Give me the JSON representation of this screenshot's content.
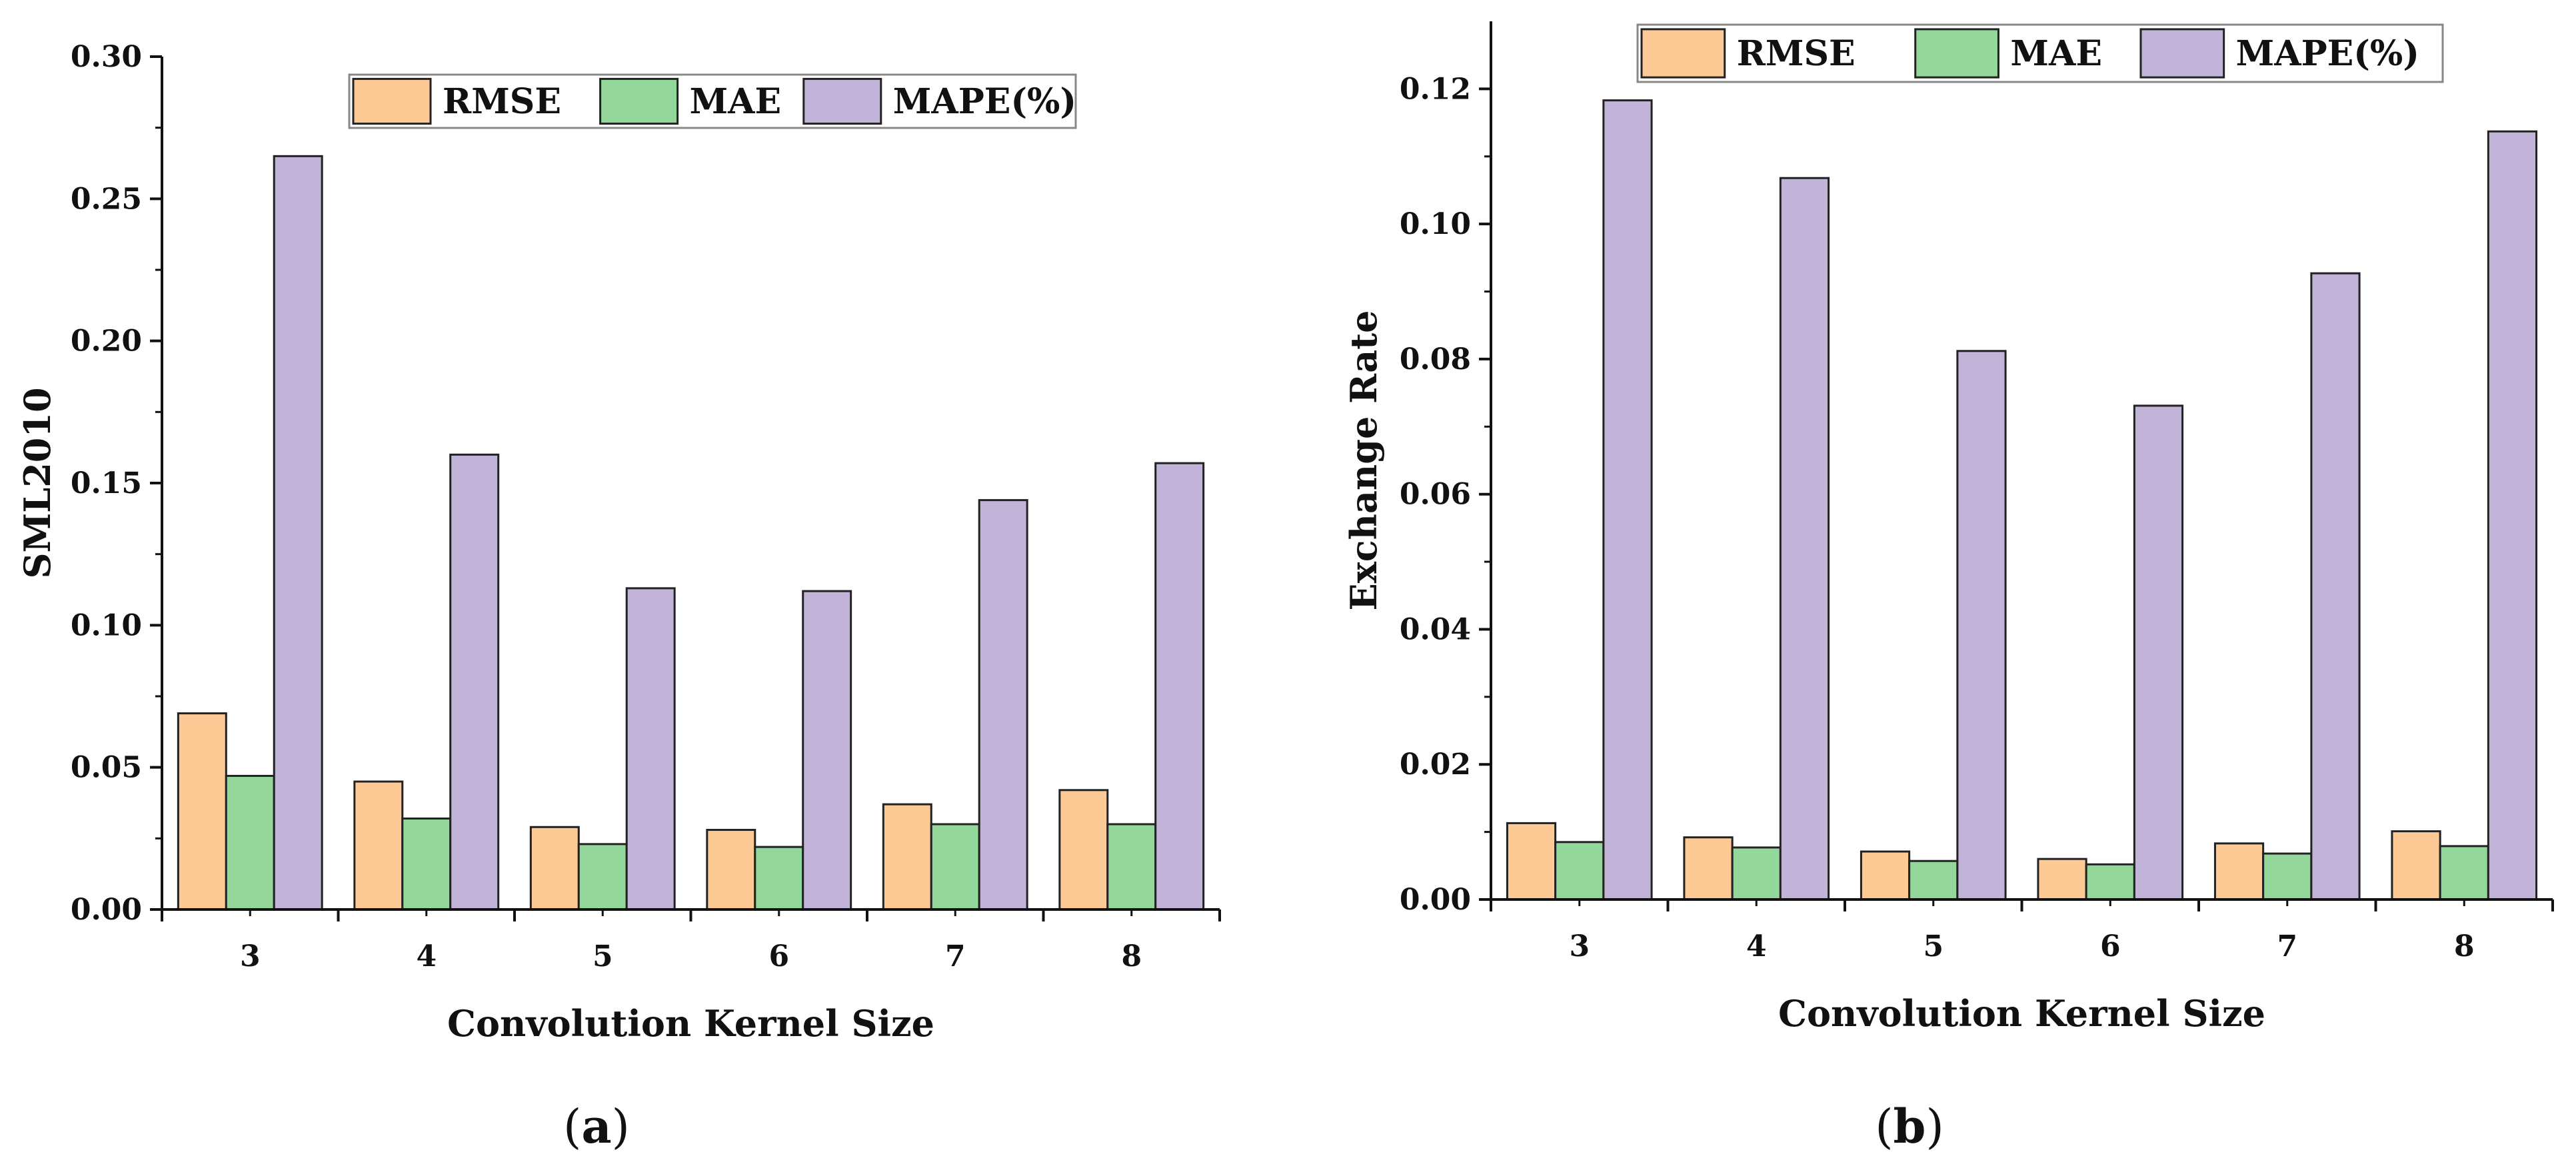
{
  "colors": {
    "RMSE": "#FDCA95",
    "MAE": "#93D79A",
    "MAPE(%)": "#C2B4D8"
  },
  "chart_data": [
    {
      "type": "bar",
      "categories": [
        "3",
        "4",
        "5",
        "6",
        "7",
        "8"
      ],
      "xlabel": "Convolution Kernel Size",
      "ylabel": "SML2010",
      "ylim": [
        0,
        0.3
      ],
      "yticks": [
        0.0,
        0.05,
        0.1,
        0.15,
        0.2,
        0.25,
        0.3
      ],
      "ytick_labels": [
        "0.00",
        "0.05",
        "0.10",
        "0.15",
        "0.20",
        "0.25",
        "0.30"
      ],
      "legend_position": "top-right",
      "series": [
        {
          "name": "RMSE",
          "values": [
            0.069,
            0.045,
            0.029,
            0.028,
            0.037,
            0.042
          ]
        },
        {
          "name": "MAE",
          "values": [
            0.047,
            0.032,
            0.023,
            0.022,
            0.03,
            0.03
          ]
        },
        {
          "name": "MAPE(%)",
          "values": [
            0.265,
            0.16,
            0.113,
            0.112,
            0.144,
            0.157
          ]
        }
      ],
      "caption_open": "(",
      "caption_letter": "a",
      "caption_close": ")"
    },
    {
      "type": "bar",
      "categories": [
        "3",
        "4",
        "5",
        "6",
        "7",
        "8"
      ],
      "xlabel": "Convolution Kernel Size",
      "ylabel": "Exchange Rate",
      "ylim": [
        0,
        0.13
      ],
      "yticks": [
        0.0,
        0.02,
        0.04,
        0.06,
        0.08,
        0.1,
        0.12
      ],
      "ytick_labels": [
        "0.00",
        "0.02",
        "0.04",
        "0.06",
        "0.08",
        "0.10",
        "0.12"
      ],
      "legend_position": "top-right",
      "series": [
        {
          "name": "RMSE",
          "values": [
            0.0113,
            0.0092,
            0.0071,
            0.006,
            0.0083,
            0.0101
          ]
        },
        {
          "name": "MAE",
          "values": [
            0.0085,
            0.0077,
            0.0057,
            0.0052,
            0.0068,
            0.0079
          ]
        },
        {
          "name": "MAPE(%)",
          "values": [
            0.1183,
            0.1068,
            0.0812,
            0.0731,
            0.0927,
            0.1137
          ]
        }
      ],
      "caption_open": "(",
      "caption_letter": "b",
      "caption_close": ")"
    }
  ]
}
